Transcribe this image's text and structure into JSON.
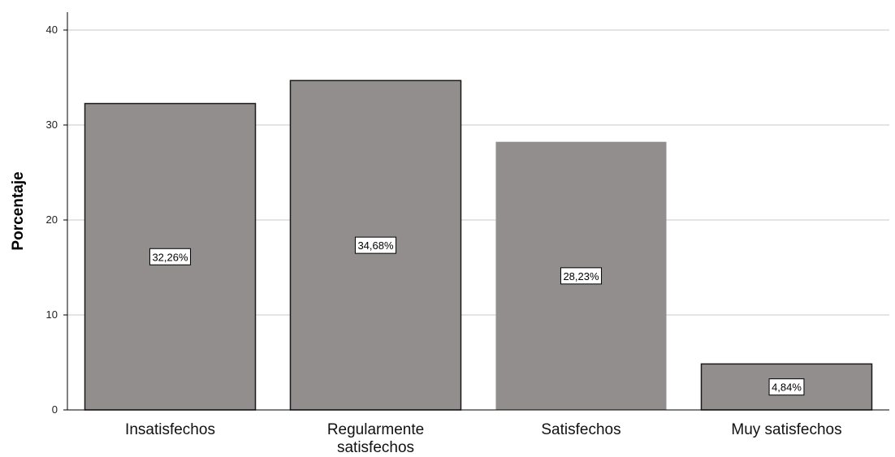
{
  "chart_data": {
    "type": "bar",
    "title": "",
    "xlabel": "",
    "ylabel": "Porcentaje",
    "ylim": [
      0,
      40
    ],
    "yticks": [
      0,
      10,
      20,
      30,
      40
    ],
    "grid": true,
    "categories": [
      [
        "Insatisfechos"
      ],
      [
        "Regularmente",
        "satisfechos"
      ],
      [
        "Satisfechos"
      ],
      [
        "Muy satisfechos"
      ]
    ],
    "values": [
      32.26,
      34.68,
      28.23,
      4.84
    ],
    "data_labels": [
      "32,26%",
      "34,68%",
      "28,23%",
      "4,84%"
    ],
    "bar_color": "#928e8d",
    "bar_outline": "#1a1a1a"
  }
}
